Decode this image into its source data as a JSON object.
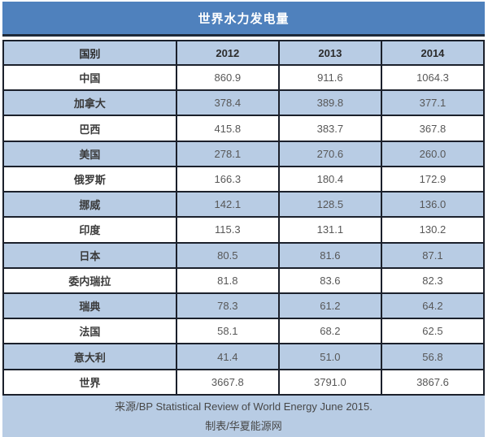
{
  "title": "世界水力发电量",
  "table": {
    "columns": [
      "国别",
      "2012",
      "2013",
      "2014"
    ],
    "rows": [
      {
        "name": "中国",
        "values": [
          "860.9",
          "911.6",
          "1064.3"
        ]
      },
      {
        "name": "加拿大",
        "values": [
          "378.4",
          "389.8",
          "377.1"
        ]
      },
      {
        "name": "巴西",
        "values": [
          "415.8",
          "383.7",
          "367.8"
        ]
      },
      {
        "name": "美国",
        "values": [
          "278.1",
          "270.6",
          "260.0"
        ]
      },
      {
        "name": "俄罗斯",
        "values": [
          "166.3",
          "180.4",
          "172.9"
        ]
      },
      {
        "name": "挪威",
        "values": [
          "142.1",
          "128.5",
          "136.0"
        ]
      },
      {
        "name": "印度",
        "values": [
          "115.3",
          "131.1",
          "130.2"
        ]
      },
      {
        "name": "日本",
        "values": [
          "80.5",
          "81.6",
          "87.1"
        ]
      },
      {
        "name": "委内瑞拉",
        "values": [
          "81.8",
          "83.6",
          "82.3"
        ]
      },
      {
        "name": "瑞典",
        "values": [
          "78.3",
          "61.2",
          "64.2"
        ]
      },
      {
        "name": "法国",
        "values": [
          "58.1",
          "68.2",
          "62.5"
        ]
      },
      {
        "name": "意大利",
        "values": [
          "41.4",
          "51.0",
          "56.8"
        ]
      },
      {
        "name": "世界",
        "values": [
          "3667.8",
          "3791.0",
          "3867.6"
        ]
      }
    ]
  },
  "footer": {
    "source": "来源/BP Statistical Review of World Energy June 2015.",
    "credit": "制表/华夏能源网"
  },
  "colors": {
    "title_bg": "#4f81bd",
    "alt_row_bg": "#b8cce4",
    "border": "#1b202b",
    "title_text": "#ffffff",
    "body_text": "#575757"
  },
  "chart_data": {
    "type": "table",
    "title": "世界水力发电量",
    "categories": [
      "中国",
      "加拿大",
      "巴西",
      "美国",
      "俄罗斯",
      "挪威",
      "印度",
      "日本",
      "委内瑞拉",
      "瑞典",
      "法国",
      "意大利",
      "世界"
    ],
    "series": [
      {
        "name": "2012",
        "values": [
          860.9,
          378.4,
          415.8,
          278.1,
          166.3,
          142.1,
          115.3,
          80.5,
          81.8,
          78.3,
          58.1,
          41.4,
          3667.8
        ]
      },
      {
        "name": "2013",
        "values": [
          911.6,
          389.8,
          383.7,
          270.6,
          180.4,
          128.5,
          131.1,
          81.6,
          83.6,
          61.2,
          68.2,
          51.0,
          3791.0
        ]
      },
      {
        "name": "2014",
        "values": [
          1064.3,
          377.1,
          367.8,
          260.0,
          172.9,
          136.0,
          130.2,
          87.1,
          82.3,
          64.2,
          62.5,
          56.8,
          3867.6
        ]
      }
    ],
    "annotations": [
      "来源/BP Statistical Review of World Energy June 2015.",
      "制表/华夏能源网"
    ]
  }
}
